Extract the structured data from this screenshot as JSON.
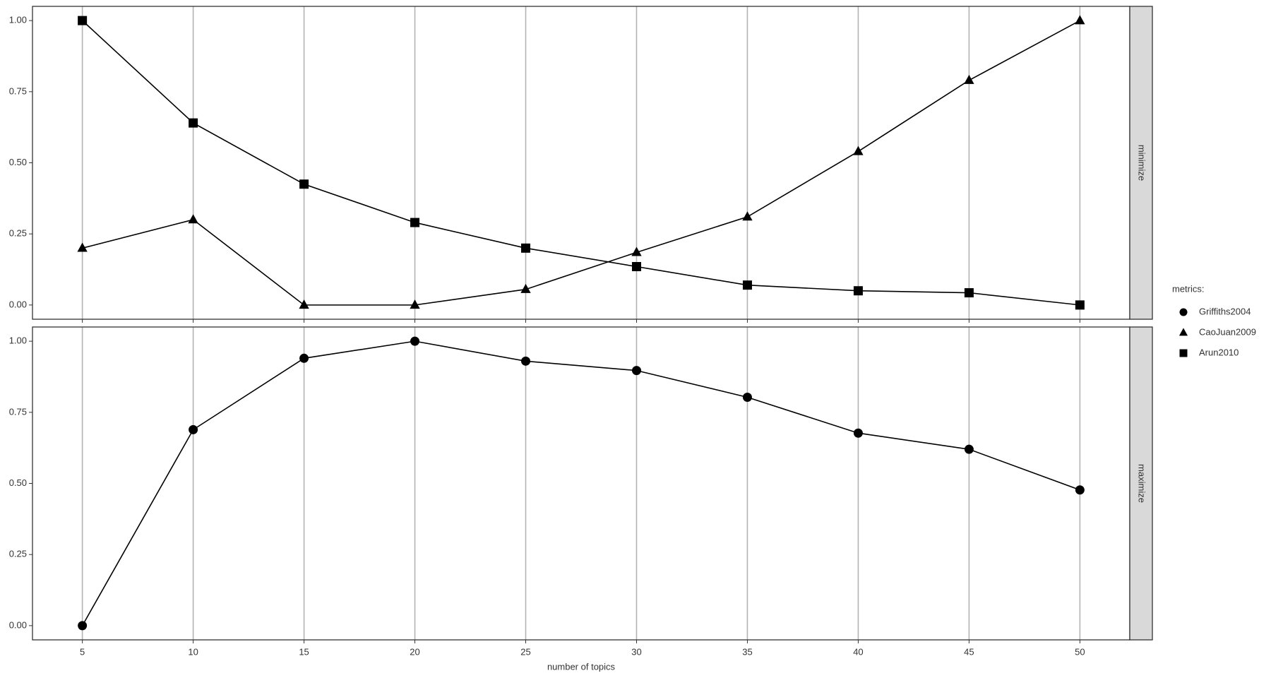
{
  "chart_data": [
    {
      "type": "line",
      "strip": "minimize",
      "x": [
        5,
        10,
        15,
        20,
        25,
        30,
        35,
        40,
        45,
        50
      ],
      "xlim": [
        2.75,
        52.25
      ],
      "xticks": [
        5,
        10,
        15,
        20,
        25,
        30,
        35,
        40,
        45,
        50
      ],
      "ylim": [
        -0.05,
        1.05
      ],
      "yticks": [
        {
          "value": 0,
          "label": "0.00"
        },
        {
          "value": 0.25,
          "label": "0.25"
        },
        {
          "value": 0.5,
          "label": "0.50"
        },
        {
          "value": 0.75,
          "label": "0.75"
        },
        {
          "value": 1,
          "label": "1.00"
        }
      ],
      "grid": "x",
      "series": [
        {
          "name": "CaoJuan2009",
          "marker": "triangle",
          "color": "#000000",
          "values": [
            0.2,
            0.3,
            0.0,
            0.0,
            0.055,
            0.185,
            0.31,
            0.54,
            0.79,
            1.0
          ]
        },
        {
          "name": "Arun2010",
          "marker": "square",
          "color": "#000000",
          "values": [
            1.0,
            0.64,
            0.425,
            0.29,
            0.2,
            0.135,
            0.07,
            0.05,
            0.043,
            0.0
          ]
        }
      ]
    },
    {
      "type": "line",
      "strip": "maximize",
      "xlabel": "number of topics",
      "x": [
        5,
        10,
        15,
        20,
        25,
        30,
        35,
        40,
        45,
        50
      ],
      "xlim": [
        2.75,
        52.25
      ],
      "xticks": [
        5,
        10,
        15,
        20,
        25,
        30,
        35,
        40,
        45,
        50
      ],
      "ylim": [
        -0.05,
        1.05
      ],
      "yticks": [
        {
          "value": 0,
          "label": "0.00"
        },
        {
          "value": 0.25,
          "label": "0.25"
        },
        {
          "value": 0.5,
          "label": "0.50"
        },
        {
          "value": 0.75,
          "label": "0.75"
        },
        {
          "value": 1,
          "label": "1.00"
        }
      ],
      "grid": "x",
      "series": [
        {
          "name": "Griffiths2004",
          "marker": "circle",
          "color": "#000000",
          "values": [
            0.0,
            0.689,
            0.94,
            1.0,
            0.93,
            0.897,
            0.803,
            0.677,
            0.62,
            0.477
          ]
        }
      ]
    }
  ],
  "legend": {
    "title": "metrics:",
    "entries": [
      {
        "name": "Griffiths2004",
        "marker": "circle",
        "color": "#000000"
      },
      {
        "name": "CaoJuan2009",
        "marker": "triangle",
        "color": "#000000"
      },
      {
        "name": "Arun2010",
        "marker": "square",
        "color": "#000000"
      }
    ]
  }
}
